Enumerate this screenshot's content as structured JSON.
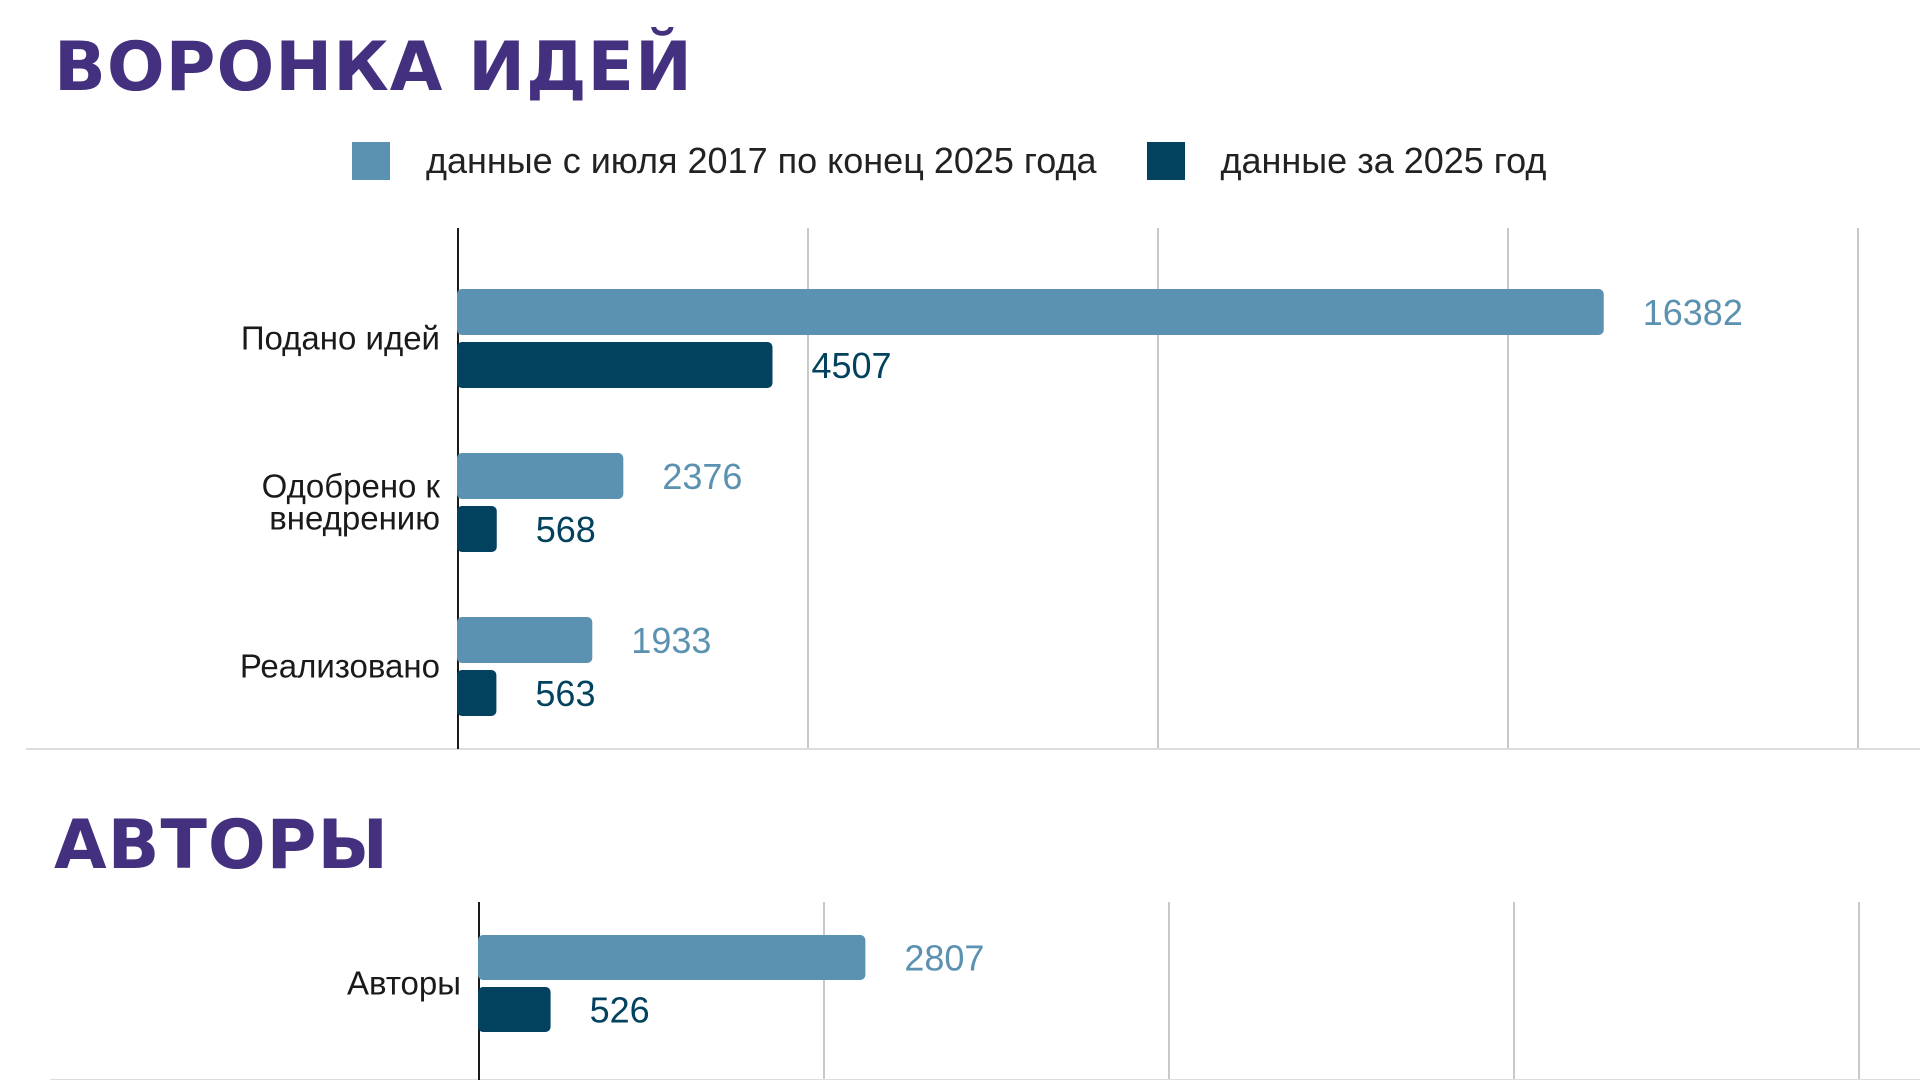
{
  "colors": {
    "title": "#43307f",
    "series_all": "#5b92b1",
    "series_2025": "#03425f",
    "grid": "#c9c9c9",
    "axis": "#1a1a1a"
  },
  "titles": {
    "funnel": "ВОРОНКА ИДЕЙ",
    "authors": "АВТОРЫ"
  },
  "legend": [
    {
      "label": "данные с июля 2017 по конец 2025 года",
      "color": "#5b92b1"
    },
    {
      "label": "данные за 2025 год",
      "color": "#03425f"
    }
  ],
  "chart_data": [
    {
      "type": "bar",
      "orientation": "horizontal",
      "title": "ВОРОНКА ИДЕЙ",
      "categories": [
        [
          "Подано идей"
        ],
        [
          "Одобрено к",
          "внедрению"
        ],
        [
          "Реализовано"
        ]
      ],
      "series": [
        {
          "name": "данные с июля 2017 по конец 2025 года",
          "values": [
            16382,
            2376,
            1933
          ],
          "color": "#5b92b1"
        },
        {
          "name": "данные за 2025 год",
          "values": [
            4507,
            568,
            563
          ],
          "color": "#03425f"
        }
      ],
      "xlim": [
        0,
        20000
      ],
      "grid": true,
      "legend_position": "top"
    },
    {
      "type": "bar",
      "orientation": "horizontal",
      "title": "АВТОРЫ",
      "categories": [
        [
          "Авторы"
        ]
      ],
      "series": [
        {
          "name": "данные с июля 2017 по конец 2025 года",
          "values": [
            2807
          ],
          "color": "#5b92b1"
        },
        {
          "name": "данные за 2025 год",
          "values": [
            526
          ],
          "color": "#03425f"
        }
      ],
      "xlim": [
        0,
        10000
      ],
      "grid": true,
      "legend_position": "top"
    }
  ]
}
